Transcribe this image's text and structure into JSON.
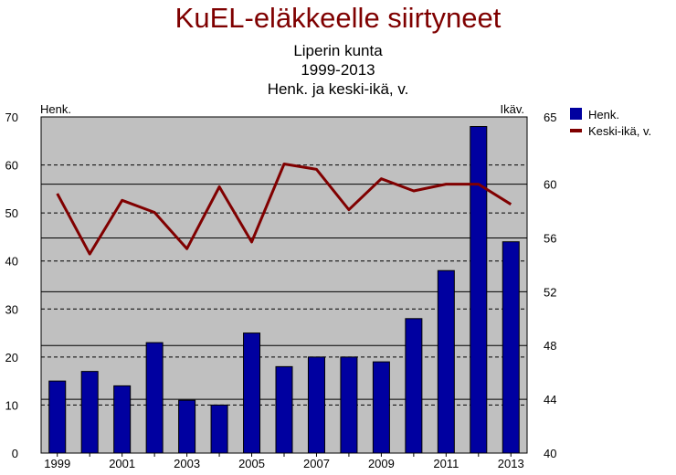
{
  "chart_data": {
    "type": "bar",
    "title": "KuEL-eläkkeelle siirtyneet",
    "subtitles": [
      "Liperin kunta",
      "1999-2013",
      "Henk. ja keski-ikä, v."
    ],
    "left_axis_label": "Henk.",
    "right_axis_label": "Ikäv.",
    "categories": [
      "1999",
      "2000",
      "2001",
      "2002",
      "2003",
      "2004",
      "2005",
      "2006",
      "2007",
      "2008",
      "2009",
      "2010",
      "2011",
      "2012",
      "2013"
    ],
    "x_tick_labels": [
      "1999",
      "2001",
      "2003",
      "2005",
      "2007",
      "2009",
      "2011",
      "2013"
    ],
    "left_ylim": [
      0,
      70
    ],
    "left_ticks": [
      "0",
      "10",
      "20",
      "30",
      "40",
      "50",
      "60",
      "70"
    ],
    "right_ylim": [
      40,
      65
    ],
    "right_ticks": [
      "40",
      "44",
      "48",
      "52",
      "56",
      "60",
      "65"
    ],
    "series": [
      {
        "name": "Henk.",
        "type": "bar",
        "axis": "left",
        "values": [
          15,
          17,
          14,
          23,
          11,
          10,
          25,
          18,
          20,
          20,
          19,
          28,
          38,
          68,
          44
        ]
      },
      {
        "name": "Keski-ikä, v.",
        "type": "line",
        "axis": "right",
        "values": [
          59.3,
          54.8,
          58.8,
          57.9,
          55.2,
          59.8,
          55.7,
          61.5,
          61.1,
          58.1,
          60.4,
          59.5,
          60.0,
          60.0,
          58.5
        ]
      }
    ],
    "colors": {
      "bar": "#0000a0",
      "line": "#800000",
      "plot_bg": "#c0c0c0"
    },
    "grid": true,
    "legend_position": "right"
  }
}
